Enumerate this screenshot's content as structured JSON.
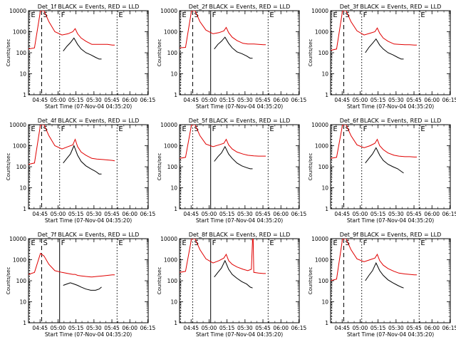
{
  "chart_data": [
    {
      "type": "line",
      "title": "Det_1f BLACK = Events, RED = LLD",
      "xlabel": "Start Time (07-Nov-04 04:35:20)",
      "ylabel": "Counts/sec",
      "scale": "log",
      "ylim": [
        1,
        10000
      ],
      "yticks": [
        "1",
        "10",
        "100",
        "1000",
        "10000"
      ],
      "xticks": [
        "04:45",
        "05:00",
        "05:15",
        "05:30",
        "05:45",
        "06:00",
        "06:15"
      ],
      "markers": [
        {
          "label": "E",
          "type": "dotted"
        },
        {
          "label": "S",
          "type": "dashed"
        },
        {
          "label": "F",
          "type": "dotted"
        },
        {
          "label": "E",
          "type": "dotted"
        }
      ],
      "series": [
        {
          "name": "RED = LLD",
          "color": "#e00000",
          "x": [
            0,
            5,
            10,
            13,
            17,
            22,
            28,
            33,
            37,
            39,
            41,
            44,
            48,
            53,
            57,
            62,
            66,
            70,
            72
          ],
          "y": [
            150,
            170,
            10000,
            10000,
            3000,
            1000,
            700,
            800,
            1000,
            1400,
            800,
            500,
            350,
            250,
            250,
            250,
            250,
            230,
            230
          ]
        },
        {
          "name": "BLACK = Events",
          "color": "#000000",
          "x": [
            29,
            32,
            35,
            38,
            41,
            44,
            48,
            52,
            56,
            59,
            61
          ],
          "y": [
            120,
            200,
            300,
            500,
            250,
            150,
            100,
            80,
            60,
            50,
            50
          ]
        }
      ]
    },
    {
      "type": "line",
      "title": "Det_2f BLACK = Events, RED = LLD",
      "xlabel": "Start Time (07-Nov-04 04:35:20)",
      "ylabel": "Counts/sec",
      "scale": "log",
      "ylim": [
        1,
        10000
      ],
      "yticks": [
        "1",
        "10",
        "100",
        "1000",
        "10000"
      ],
      "xticks": [
        "04:45",
        "05:00",
        "05:15",
        "05:30",
        "05:45",
        "06:00",
        "06:15"
      ],
      "markers": [
        {
          "label": "E",
          "type": "dotted"
        },
        {
          "label": "S",
          "type": "dashed"
        },
        {
          "label": "F",
          "type": "solid"
        },
        {
          "label": "E",
          "type": "dotted"
        }
      ],
      "series": [
        {
          "name": "RED = LLD",
          "color": "#e00000",
          "x": [
            0,
            5,
            10,
            13,
            17,
            22,
            28,
            33,
            37,
            39,
            41,
            44,
            48,
            53,
            57,
            62,
            66,
            70,
            72
          ],
          "y": [
            170,
            180,
            10000,
            10000,
            3000,
            1200,
            800,
            900,
            1100,
            1600,
            900,
            550,
            380,
            280,
            260,
            260,
            250,
            240,
            240
          ]
        },
        {
          "name": "BLACK = Events",
          "color": "#000000",
          "x": [
            29,
            32,
            35,
            38,
            41,
            44,
            48,
            52,
            56,
            59,
            61
          ],
          "y": [
            150,
            250,
            350,
            550,
            280,
            170,
            110,
            90,
            70,
            55,
            55
          ]
        }
      ]
    },
    {
      "type": "line",
      "title": "Det_3f BLACK = Events, RED = LLD",
      "xlabel": "Start Time (07-Nov-04 04:35:20)",
      "ylabel": "Counts/sec",
      "scale": "log",
      "ylim": [
        1,
        10000
      ],
      "yticks": [
        "1",
        "10",
        "100",
        "1000",
        "10000"
      ],
      "xticks": [
        "04:45",
        "05:00",
        "05:15",
        "05:30",
        "05:45",
        "06:00",
        "06:15"
      ],
      "markers": [
        {
          "label": "E",
          "type": "dotted"
        },
        {
          "label": "S",
          "type": "dashed"
        },
        {
          "label": "F",
          "type": "dotted"
        },
        {
          "label": "E",
          "type": "dotted"
        }
      ],
      "series": [
        {
          "name": "RED = LLD",
          "color": "#e00000",
          "x": [
            0,
            5,
            10,
            13,
            17,
            22,
            28,
            33,
            37,
            39,
            41,
            44,
            48,
            53,
            57,
            62,
            66,
            70,
            72
          ],
          "y": [
            130,
            150,
            10000,
            10000,
            3000,
            1100,
            700,
            850,
            1000,
            1500,
            850,
            500,
            350,
            260,
            250,
            240,
            240,
            230,
            230
          ]
        },
        {
          "name": "BLACK = Events",
          "color": "#000000",
          "x": [
            29,
            32,
            35,
            38,
            41,
            44,
            48,
            52,
            56,
            59,
            61
          ],
          "y": [
            100,
            180,
            280,
            450,
            230,
            150,
            100,
            80,
            60,
            50,
            50
          ]
        }
      ]
    },
    {
      "type": "line",
      "title": "Det_4f BLACK = Events, RED = LLD",
      "xlabel": "Start Time (07-Nov-04 04:35:20)",
      "ylabel": "Counts/sec",
      "scale": "log",
      "ylim": [
        1,
        10000
      ],
      "yticks": [
        "1",
        "10",
        "100",
        "1000",
        "10000"
      ],
      "xticks": [
        "04:45",
        "05:00",
        "05:15",
        "05:30",
        "05:45",
        "06:00",
        "06:15"
      ],
      "markers": [
        {
          "label": "E",
          "type": "dotted"
        },
        {
          "label": "S",
          "type": "dashed"
        },
        {
          "label": "F",
          "type": "dotted"
        },
        {
          "label": "E",
          "type": "dotted"
        }
      ],
      "series": [
        {
          "name": "RED = LLD",
          "color": "#e00000",
          "x": [
            0,
            5,
            10,
            13,
            17,
            22,
            28,
            33,
            37,
            39,
            41,
            44,
            48,
            53,
            57,
            62,
            66,
            70,
            72
          ],
          "y": [
            130,
            150,
            10000,
            10000,
            3000,
            1000,
            700,
            900,
            1100,
            2000,
            900,
            500,
            350,
            250,
            230,
            220,
            210,
            200,
            190
          ]
        },
        {
          "name": "BLACK = Events",
          "color": "#000000",
          "x": [
            29,
            32,
            35,
            38,
            41,
            44,
            48,
            52,
            56,
            59,
            61
          ],
          "y": [
            150,
            250,
            400,
            1000,
            350,
            180,
            110,
            80,
            60,
            45,
            45
          ]
        }
      ]
    },
    {
      "type": "line",
      "title": "Det_5f BLACK = Events, RED = LLD",
      "xlabel": "Start Time (07-Nov-04 04:35:20)",
      "ylabel": "Counts/sec",
      "scale": "log",
      "ylim": [
        1,
        10000
      ],
      "yticks": [
        "1",
        "10",
        "100",
        "1000",
        "10000"
      ],
      "xticks": [
        "04:45",
        "05:00",
        "05:15",
        "05:30",
        "05:45",
        "06:00",
        "06:15"
      ],
      "markers": [
        {
          "label": "E",
          "type": "dotted"
        },
        {
          "label": "S",
          "type": "dotted"
        },
        {
          "label": "F",
          "type": "solid"
        },
        {
          "label": "E",
          "type": "dotted"
        }
      ],
      "series": [
        {
          "name": "RED = LLD",
          "color": "#e00000",
          "x": [
            0,
            5,
            10,
            13,
            17,
            22,
            28,
            33,
            37,
            39,
            41,
            44,
            48,
            53,
            57,
            62,
            66,
            70,
            72
          ],
          "y": [
            250,
            280,
            10000,
            10000,
            3000,
            1200,
            900,
            1100,
            1300,
            2000,
            1100,
            700,
            500,
            400,
            350,
            330,
            320,
            320,
            320
          ]
        },
        {
          "name": "BLACK = Events",
          "color": "#000000",
          "x": [
            29,
            32,
            35,
            38,
            41,
            44,
            48,
            52,
            56,
            59,
            61
          ],
          "y": [
            180,
            300,
            450,
            900,
            400,
            250,
            150,
            110,
            90,
            80,
            80
          ]
        }
      ]
    },
    {
      "type": "line",
      "title": "Det_6f BLACK = Events, RED = LLD",
      "xlabel": "Start Time (07-Nov-04 04:35:20)",
      "ylabel": "Counts/sec",
      "scale": "log",
      "ylim": [
        1,
        10000
      ],
      "yticks": [
        "1",
        "10",
        "100",
        "1000",
        "10000"
      ],
      "xticks": [
        "04:45",
        "05:00",
        "05:15",
        "05:30",
        "05:45",
        "06:00",
        "06:15"
      ],
      "markers": [
        {
          "label": "E",
          "type": "dotted"
        },
        {
          "label": "S",
          "type": "dashed"
        },
        {
          "label": "F",
          "type": "dotted"
        },
        {
          "label": "E",
          "type": "dotted"
        }
      ],
      "series": [
        {
          "name": "RED = LLD",
          "color": "#e00000",
          "x": [
            0,
            5,
            10,
            13,
            17,
            22,
            28,
            33,
            37,
            39,
            41,
            44,
            48,
            53,
            57,
            62,
            66,
            70,
            72
          ],
          "y": [
            250,
            280,
            10000,
            10000,
            3000,
            1100,
            800,
            1000,
            1300,
            2000,
            1000,
            650,
            450,
            350,
            320,
            300,
            300,
            290,
            290
          ]
        },
        {
          "name": "BLACK = Events",
          "color": "#000000",
          "x": [
            29,
            32,
            35,
            38,
            41,
            44,
            48,
            52,
            56,
            59,
            61
          ],
          "y": [
            150,
            250,
            400,
            800,
            350,
            200,
            130,
            100,
            80,
            60,
            50
          ]
        }
      ]
    },
    {
      "type": "line",
      "title": "Det_7f BLACK = Events, RED = LLD",
      "xlabel": "Start Time (07-Nov-04 04:35:20)",
      "ylabel": "Counts/sec",
      "scale": "log",
      "ylim": [
        1,
        10000
      ],
      "yticks": [
        "1",
        "10",
        "100",
        "1000",
        "10000"
      ],
      "xticks": [
        "04:45",
        "05:00",
        "05:15",
        "05:30",
        "05:45",
        "06:00",
        "06:15"
      ],
      "markers": [
        {
          "label": "E",
          "type": "dotted"
        },
        {
          "label": "S",
          "type": "dashed"
        },
        {
          "label": "F",
          "type": "solid"
        },
        {
          "label": "E",
          "type": "dotted"
        }
      ],
      "series": [
        {
          "name": "RED = LLD",
          "color": "#e00000",
          "x": [
            0,
            5,
            10,
            13,
            17,
            22,
            28,
            33,
            37,
            39,
            41,
            44,
            48,
            53,
            57,
            62,
            66,
            70,
            72
          ],
          "y": [
            200,
            250,
            2000,
            1500,
            600,
            300,
            250,
            220,
            200,
            200,
            180,
            170,
            160,
            150,
            160,
            170,
            180,
            190,
            190
          ]
        },
        {
          "name": "BLACK = Events",
          "color": "#000000",
          "x": [
            29,
            32,
            35,
            38,
            41,
            44,
            48,
            52,
            56,
            59,
            61
          ],
          "y": [
            60,
            70,
            80,
            70,
            60,
            50,
            40,
            35,
            35,
            40,
            50
          ]
        }
      ]
    },
    {
      "type": "line",
      "title": "Det_8f BLACK = Events, RED = LLD",
      "xlabel": "Start Time (07-Nov-04 04:35:20)",
      "ylabel": "Counts/sec",
      "scale": "log",
      "ylim": [
        1,
        10000
      ],
      "yticks": [
        "1",
        "10",
        "100",
        "1000",
        "10000"
      ],
      "xticks": [
        "04:45",
        "05:00",
        "05:15",
        "05:30",
        "05:45",
        "06:00",
        "06:15"
      ],
      "markers": [
        {
          "label": "E",
          "type": "dotted"
        },
        {
          "label": "S",
          "type": "dotted"
        },
        {
          "label": "F",
          "type": "solid"
        },
        {
          "label": "E",
          "type": "dotted"
        }
      ],
      "series": [
        {
          "name": "RED = LLD",
          "color": "#e00000",
          "x": [
            0,
            5,
            10,
            13,
            17,
            22,
            28,
            33,
            37,
            39,
            41,
            44,
            48,
            53,
            57,
            60,
            61,
            61.5,
            62,
            66,
            70,
            72
          ],
          "y": [
            250,
            280,
            10000,
            10000,
            3000,
            1100,
            700,
            900,
            1200,
            1800,
            900,
            600,
            450,
            350,
            300,
            350,
            10000,
            10000,
            250,
            230,
            220,
            220
          ]
        },
        {
          "name": "BLACK = Events",
          "color": "#000000",
          "x": [
            29,
            32,
            35,
            38,
            41,
            44,
            48,
            52,
            56,
            59,
            61
          ],
          "y": [
            150,
            250,
            400,
            900,
            350,
            200,
            130,
            90,
            70,
            50,
            45
          ]
        }
      ]
    },
    {
      "type": "line",
      "title": "Det_9f BLACK = Events, RED = LLD",
      "xlabel": "Start Time (07-Nov-04 04:35:20)",
      "ylabel": "Counts/sec",
      "scale": "log",
      "ylim": [
        1,
        10000
      ],
      "yticks": [
        "1",
        "10",
        "100",
        "1000",
        "10000"
      ],
      "xticks": [
        "04:45",
        "05:00",
        "05:15",
        "05:30",
        "05:45",
        "06:00",
        "06:15"
      ],
      "markers": [
        {
          "label": "E",
          "type": "dotted"
        },
        {
          "label": "S",
          "type": "dashed"
        },
        {
          "label": "F",
          "type": "dotted"
        },
        {
          "label": "E",
          "type": "dotted"
        }
      ],
      "series": [
        {
          "name": "RED = LLD",
          "color": "#e00000",
          "x": [
            0,
            5,
            10,
            13,
            17,
            22,
            28,
            33,
            37,
            39,
            41,
            44,
            48,
            53,
            57,
            62,
            66,
            70,
            72
          ],
          "y": [
            100,
            120,
            10000,
            10000,
            3000,
            1100,
            800,
            1000,
            1200,
            1800,
            900,
            550,
            380,
            280,
            230,
            210,
            200,
            190,
            190
          ]
        },
        {
          "name": "BLACK = Events",
          "color": "#000000",
          "x": [
            29,
            32,
            35,
            38,
            41,
            44,
            48,
            52,
            56,
            59,
            61
          ],
          "y": [
            100,
            180,
            300,
            700,
            300,
            180,
            110,
            80,
            60,
            50,
            45
          ]
        }
      ]
    }
  ]
}
